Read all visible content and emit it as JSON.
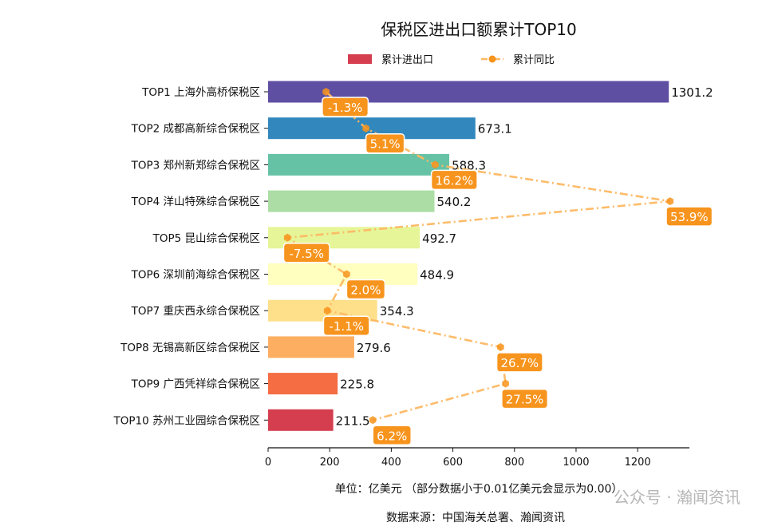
{
  "chart_data": {
    "type": "bar",
    "orientation": "horizontal",
    "title": "保税区进出口额累计TOP10",
    "categories": [
      "TOP1 上海外高桥保税区",
      "TOP2 成都高新综合保税区",
      "TOP3 郑州新郑综合保税区",
      "TOP4 洋山特殊综合保税区",
      "TOP5 昆山综合保税区",
      "TOP6 深圳前海综合保税区",
      "TOP7 重庆西永综合保税区",
      "TOP8 无锡高新区综合保税区",
      "TOP9 广西凭祥综合保税区",
      "TOP10 苏州工业园综合保税区"
    ],
    "series": [
      {
        "name": "累计进出口",
        "type": "bar",
        "values": [
          1301.2,
          673.1,
          588.3,
          540.2,
          492.7,
          484.9,
          354.3,
          279.6,
          225.8,
          211.5
        ],
        "labels": [
          "1301.2",
          "673.1",
          "588.3",
          "540.2",
          "492.7",
          "484.9",
          "354.3",
          "279.6",
          "225.8",
          "211.5"
        ]
      },
      {
        "name": "累计同比",
        "type": "line",
        "values": [
          -1.3,
          5.1,
          16.2,
          53.9,
          -7.5,
          2.0,
          -1.1,
          26.7,
          27.5,
          6.2
        ],
        "labels": [
          "-1.3%",
          "5.1%",
          "16.2%",
          "53.9%",
          "-7.5%",
          "2.0%",
          "-1.1%",
          "26.7%",
          "27.5%",
          "6.2%"
        ]
      }
    ],
    "xlim": [
      0,
      1368
    ],
    "secondary_xlim": [
      -10.6,
      57
    ],
    "xticks": [
      "0",
      "200",
      "400",
      "600",
      "800",
      "1000",
      "1200"
    ],
    "xlabel": "单位：亿美元  （部分数据小于0.01亿美元会显示为0.00）",
    "source": "数据来源：中国海关总署、瀚闻资讯",
    "legend_position": "top-center",
    "grid": false,
    "colors": {
      "bars": [
        "#5e4fa2",
        "#3288bd",
        "#66c2a5",
        "#abdda4",
        "#e6f598",
        "#ffffbf",
        "#fee08b",
        "#fdae61",
        "#f46d43",
        "#d53e4f"
      ],
      "line": "#fdb863",
      "marker": "#f7941d",
      "label_box": "#f7941d",
      "legend_bar": "#d53e4f"
    }
  },
  "watermark": "公众号 · 瀚闻资讯"
}
